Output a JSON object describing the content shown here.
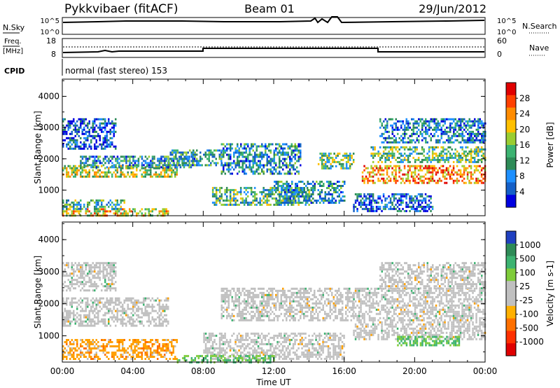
{
  "header": {
    "station": "Pykkvibaer (fitACF)",
    "beam": "Beam 01",
    "date": "29/Jun/2012"
  },
  "panels": {
    "nsky_label": "N.Sky",
    "nsky_ticks": [
      "10^5",
      "10^0"
    ],
    "nsearch_label": "N.Search",
    "nsearch_ticks": [
      "10^5",
      "10^0"
    ],
    "freq_label_1": "Freq.",
    "freq_label_2": "[MHz]",
    "freq_ticks": [
      "18",
      "8"
    ],
    "nave_label": "Nave",
    "nave_ticks": [
      "60",
      "0"
    ],
    "cpid_label": "CPID",
    "cpid_text": "normal (fast stereo) 153"
  },
  "chart_data": [
    {
      "type": "heatmap",
      "title": "",
      "xlabel": "Time UT",
      "ylabel": "Slant Range [km]",
      "colorbar_label": "Power [dB]",
      "xlim": [
        0,
        24
      ],
      "x_ticks": [
        "00:00",
        "04:00",
        "08:00",
        "12:00",
        "16:00",
        "20:00",
        "00:00"
      ],
      "ylim": [
        180,
        4550
      ],
      "y_ticks": [
        1000,
        2000,
        3000,
        4000
      ],
      "colorbar_ticks": [
        "28",
        "24",
        "20",
        "16",
        "12",
        "8",
        "4"
      ],
      "colorbar_colors": [
        "#e00000",
        "#ff4000",
        "#ff8c00",
        "#ffc000",
        "#9acd32",
        "#3cb371",
        "#2e8b57",
        "#1e90ff",
        "#1560c8",
        "#0000e0"
      ],
      "bands": [
        {
          "t": [
            0.0,
            6.0
          ],
          "r": [
            180,
            420
          ],
          "level": 0.65
        },
        {
          "t": [
            0.0,
            3.5
          ],
          "r": [
            420,
            700
          ],
          "level": 0.4
        },
        {
          "t": [
            0.0,
            6.5
          ],
          "r": [
            1400,
            1800
          ],
          "level": 0.55
        },
        {
          "t": [
            1.0,
            7.5
          ],
          "r": [
            1700,
            2100
          ],
          "level": 0.3
        },
        {
          "t": [
            0.0,
            3.0
          ],
          "r": [
            2300,
            3300
          ],
          "level": 0.15
        },
        {
          "t": [
            6.0,
            9.0
          ],
          "r": [
            1800,
            2300
          ],
          "level": 0.35
        },
        {
          "t": [
            8.5,
            14.0
          ],
          "r": [
            500,
            1100
          ],
          "level": 0.4
        },
        {
          "t": [
            9.0,
            13.5
          ],
          "r": [
            1500,
            2500
          ],
          "level": 0.3
        },
        {
          "t": [
            12.0,
            16.0
          ],
          "r": [
            600,
            1300
          ],
          "level": 0.3
        },
        {
          "t": [
            14.5,
            16.5
          ],
          "r": [
            1700,
            2200
          ],
          "level": 0.45
        },
        {
          "t": [
            17.0,
            24.0
          ],
          "r": [
            1200,
            1800
          ],
          "level": 0.75
        },
        {
          "t": [
            17.5,
            24.0
          ],
          "r": [
            1900,
            2400
          ],
          "level": 0.45
        },
        {
          "t": [
            18.0,
            24.0
          ],
          "r": [
            2500,
            3300
          ],
          "level": 0.25
        },
        {
          "t": [
            16.5,
            21.0
          ],
          "r": [
            300,
            900
          ],
          "level": 0.2
        }
      ]
    },
    {
      "type": "heatmap",
      "title": "",
      "xlabel": "Time UT",
      "ylabel": "Slant Range [km]",
      "colorbar_label": "Velocity [m s-1]",
      "xlim": [
        0,
        24
      ],
      "x_ticks": [
        "00:00",
        "04:00",
        "08:00",
        "12:00",
        "16:00",
        "20:00",
        "00:00"
      ],
      "ylim": [
        180,
        4550
      ],
      "y_ticks": [
        1000,
        2000,
        3000,
        4000
      ],
      "colorbar_ticks": [
        "1000",
        "500",
        "100",
        "25",
        "-25",
        "-100",
        "-500",
        "-1000"
      ],
      "colorbar_colors": [
        "#2040c0",
        "#2e8b57",
        "#3cb371",
        "#7fcc3a",
        "#c0c0c0",
        "#c0c0c0",
        "#ffb000",
        "#ff7000",
        "#ff3000",
        "#e00000"
      ],
      "bands": [
        {
          "t": [
            0.0,
            6.5
          ],
          "r": [
            300,
            900
          ],
          "level": "orange"
        },
        {
          "t": [
            0.0,
            6.0
          ],
          "r": [
            1300,
            2200
          ],
          "level": "grey"
        },
        {
          "t": [
            0.0,
            3.0
          ],
          "r": [
            2400,
            3300
          ],
          "level": "grey"
        },
        {
          "t": [
            8.0,
            16.0
          ],
          "r": [
            300,
            1100
          ],
          "level": "grey"
        },
        {
          "t": [
            9.0,
            16.5
          ],
          "r": [
            1500,
            2500
          ],
          "level": "grey"
        },
        {
          "t": [
            16.5,
            24.0
          ],
          "r": [
            900,
            2500
          ],
          "level": "grey"
        },
        {
          "t": [
            18.0,
            24.0
          ],
          "r": [
            2500,
            3300
          ],
          "level": "grey"
        },
        {
          "t": [
            6.5,
            12.0
          ],
          "r": [
            180,
            400
          ],
          "level": "green"
        },
        {
          "t": [
            19.0,
            22.5
          ],
          "r": [
            700,
            1000
          ],
          "level": "green"
        }
      ]
    }
  ]
}
